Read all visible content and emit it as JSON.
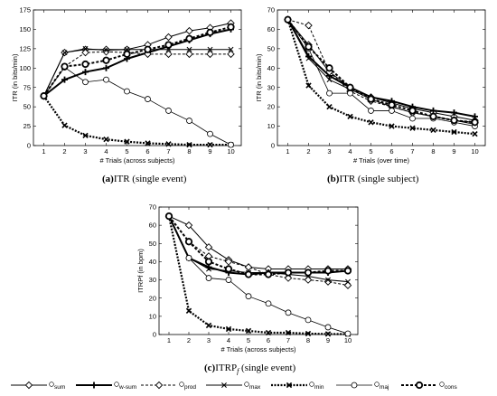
{
  "chart_data": [
    {
      "type": "line",
      "panel": "a",
      "caption_tag": "(a)",
      "caption_text": "ITR (single event)",
      "xlabel": "# Trials (across subjects)",
      "ylabel": "ITR (in bits/min)",
      "xlim": [
        0.5,
        10.5
      ],
      "ylim": [
        0,
        175
      ],
      "xticks": [
        1,
        2,
        3,
        4,
        5,
        6,
        7,
        8,
        9,
        10
      ],
      "yticks": [
        0,
        25,
        50,
        75,
        100,
        125,
        150,
        175
      ],
      "x": [
        1,
        2,
        3,
        4,
        5,
        6,
        7,
        8,
        9,
        10
      ],
      "series": [
        {
          "name": "sum",
          "values": [
            64,
            120,
            124,
            124,
            124,
            130,
            140,
            148,
            152,
            158
          ]
        },
        {
          "name": "w-sum",
          "values": [
            64,
            85,
            95,
            100,
            112,
            120,
            128,
            136,
            144,
            150
          ]
        },
        {
          "name": "prod",
          "values": [
            64,
            102,
            120,
            121,
            120,
            118,
            118,
            118,
            118,
            118
          ]
        },
        {
          "name": "max",
          "values": [
            64,
            120,
            125,
            123,
            124,
            124,
            124,
            124,
            124,
            124
          ]
        },
        {
          "name": "min",
          "values": [
            64,
            26,
            13,
            8,
            5,
            3,
            2,
            1,
            1,
            1
          ]
        },
        {
          "name": "maj",
          "values": [
            64,
            101,
            82,
            85,
            70,
            60,
            45,
            32,
            15,
            1
          ]
        },
        {
          "name": "cons",
          "values": [
            64,
            102,
            105,
            110,
            118,
            124,
            130,
            138,
            146,
            153
          ]
        }
      ]
    },
    {
      "type": "line",
      "panel": "b",
      "caption_tag": "(b)",
      "caption_text": "ITR (single subject)",
      "xlabel": "# Trials (over time)",
      "ylabel": "ITR (in bits/min)",
      "xlim": [
        0.5,
        10.5
      ],
      "ylim": [
        0,
        70
      ],
      "xticks": [
        1,
        2,
        3,
        4,
        5,
        6,
        7,
        8,
        9,
        10
      ],
      "yticks": [
        0,
        10,
        20,
        30,
        40,
        50,
        60,
        70
      ],
      "x": [
        1,
        2,
        3,
        4,
        5,
        6,
        7,
        8,
        9,
        10
      ],
      "series": [
        {
          "name": "sum",
          "values": [
            65,
            52,
            38,
            30,
            25,
            22,
            19,
            17,
            15,
            13
          ]
        },
        {
          "name": "w-sum",
          "values": [
            65,
            46,
            36,
            30,
            25,
            23,
            20,
            18,
            17,
            15
          ]
        },
        {
          "name": "prod",
          "values": [
            65,
            62,
            38,
            28,
            23,
            20,
            17,
            15,
            13,
            12
          ]
        },
        {
          "name": "max",
          "values": [
            65,
            45,
            34,
            29,
            24,
            20,
            17,
            15,
            13,
            11
          ]
        },
        {
          "name": "min",
          "values": [
            65,
            31,
            20,
            15,
            12,
            10,
            9,
            8,
            7,
            6
          ]
        },
        {
          "name": "maj",
          "values": [
            65,
            50,
            27,
            27,
            18,
            18,
            14,
            14,
            12,
            10
          ]
        },
        {
          "name": "cons",
          "values": [
            65,
            51,
            40,
            30,
            24,
            21,
            18,
            15,
            13,
            12
          ]
        }
      ]
    },
    {
      "type": "line",
      "panel": "c",
      "caption_tag": "(c)",
      "caption_text": "ITRP",
      "caption_sub": "f",
      "caption_suffix": " (single event)",
      "xlabel": "# Trials (across subjects)",
      "ylabel": "ITRPf (in bpm)",
      "xlim": [
        0.5,
        10.5
      ],
      "ylim": [
        0,
        70
      ],
      "xticks": [
        1,
        2,
        3,
        4,
        5,
        6,
        7,
        8,
        9,
        10
      ],
      "yticks": [
        0,
        10,
        20,
        30,
        40,
        50,
        60,
        70
      ],
      "x": [
        1,
        2,
        3,
        4,
        5,
        6,
        7,
        8,
        9,
        10
      ],
      "series": [
        {
          "name": "sum",
          "values": [
            65,
            60,
            48,
            41,
            37,
            36,
            36,
            36,
            36,
            36
          ]
        },
        {
          "name": "w-sum",
          "values": [
            65,
            42,
            37,
            34,
            33,
            34,
            34,
            34,
            34,
            35
          ]
        },
        {
          "name": "prod",
          "values": [
            65,
            51,
            43,
            40,
            37,
            33,
            31,
            30,
            29,
            27
          ]
        },
        {
          "name": "max",
          "values": [
            65,
            42,
            36,
            35,
            34,
            34,
            33,
            32,
            30,
            29
          ]
        },
        {
          "name": "min",
          "values": [
            65,
            13,
            5,
            3,
            2,
            1,
            1,
            0.5,
            0.3,
            0.2
          ]
        },
        {
          "name": "maj",
          "values": [
            65,
            42,
            31,
            30,
            21,
            17,
            12,
            8,
            4,
            0.5
          ]
        },
        {
          "name": "cons",
          "values": [
            65,
            51,
            40,
            36,
            33,
            33,
            34,
            34,
            35,
            35
          ]
        }
      ]
    }
  ],
  "legend": [
    {
      "name": "sum",
      "label": "sum"
    },
    {
      "name": "w-sum",
      "label": "w-sum"
    },
    {
      "name": "prod",
      "label": "prod"
    },
    {
      "name": "max",
      "label": "max"
    },
    {
      "name": "min",
      "label": "min"
    },
    {
      "name": "maj",
      "label": "maj"
    },
    {
      "name": "cons",
      "label": "cons"
    }
  ],
  "styles": {
    "sum": {
      "marker": "diamond",
      "width": 1,
      "dash": "",
      "fill": "#ffffff"
    },
    "w-sum": {
      "marker": "plus",
      "width": 2,
      "dash": "",
      "fill": "none"
    },
    "prod": {
      "marker": "diamond",
      "width": 1,
      "dash": "3,2",
      "fill": "#ffffff"
    },
    "max": {
      "marker": "x",
      "width": 1,
      "dash": "",
      "fill": "none"
    },
    "min": {
      "marker": "x",
      "width": 2.2,
      "dash": "2,1.5",
      "fill": "none"
    },
    "maj": {
      "marker": "circle",
      "width": 0.8,
      "dash": "",
      "fill": "#ffffff"
    },
    "cons": {
      "marker": "circle-bold",
      "width": 2,
      "dash": "3,2",
      "fill": "#ffffff"
    }
  }
}
